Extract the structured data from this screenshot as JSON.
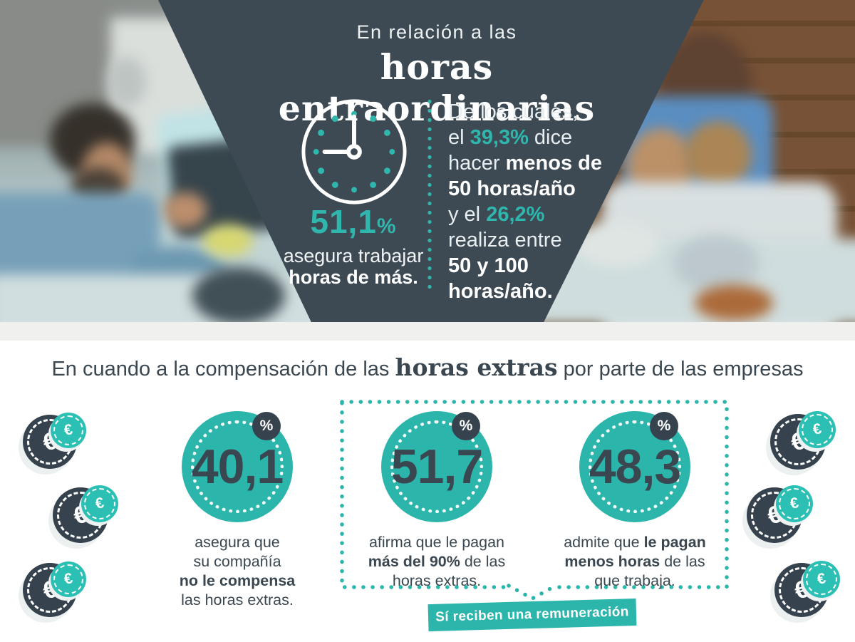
{
  "colors": {
    "teal": "#2cb5ab",
    "slate_panel": "#3d4a54",
    "text_dark": "#3a4750",
    "badge_dark": "#36434e",
    "strip": "#f0f0ee"
  },
  "icons": {
    "euro": "€",
    "clock": "clock-icon",
    "percent": "%"
  },
  "hero": {
    "title_line1": "En relación a las",
    "title_line2": "horas entraordinarias",
    "stat": {
      "value": "51,1",
      "percent_sign": "%",
      "line1": "asegura trabajar",
      "line2": "horas de más."
    },
    "detail_lines": [
      [
        {
          "t": "De los cuales,",
          "s": "r"
        }
      ],
      [
        {
          "t": "el ",
          "s": "r"
        },
        {
          "t": "39,3%",
          "s": "t"
        },
        {
          "t": " dice",
          "s": "r"
        }
      ],
      [
        {
          "t": "hacer ",
          "s": "r"
        },
        {
          "t": "menos de",
          "s": "b"
        }
      ],
      [
        {
          "t": "50 horas/año",
          "s": "b"
        }
      ],
      [
        {
          "t": "y el ",
          "s": "r"
        },
        {
          "t": "26,2%",
          "s": "t"
        }
      ],
      [
        {
          "t": "realiza entre",
          "s": "r"
        }
      ],
      [
        {
          "t": "50 y 100",
          "s": "b"
        }
      ],
      [
        {
          "t": "horas/año.",
          "s": "b"
        }
      ]
    ]
  },
  "compensation": {
    "heading_segments": [
      {
        "t": "En cuando a la compensación de las ",
        "s": "r"
      },
      {
        "t": "horas extras",
        "s": "serif"
      },
      {
        "t": " por parte de las empresas",
        "s": "r"
      }
    ],
    "stats": [
      {
        "value": "40,1",
        "badge": "%",
        "caption_lines": [
          [
            {
              "t": "asegura que",
              "s": "r"
            }
          ],
          [
            {
              "t": "su compañía",
              "s": "r"
            }
          ],
          [
            {
              "t": "no le compensa",
              "s": "b"
            }
          ],
          [
            {
              "t": "las horas extras.",
              "s": "r"
            }
          ]
        ]
      },
      {
        "value": "51,7",
        "badge": "%",
        "caption_lines": [
          [
            {
              "t": "afirma que le pagan",
              "s": "r"
            }
          ],
          [
            {
              "t": "más del 90%",
              "s": "b"
            },
            {
              "t": " de las",
              "s": "r"
            }
          ],
          [
            {
              "t": "horas extras.",
              "s": "r"
            }
          ]
        ]
      },
      {
        "value": "48,3",
        "badge": "%",
        "caption_lines": [
          [
            {
              "t": "admite que ",
              "s": "r"
            },
            {
              "t": "le pagan",
              "s": "b"
            }
          ],
          [
            {
              "t": "menos horas",
              "s": "b"
            },
            {
              "t": " de las",
              "s": "r"
            }
          ],
          [
            {
              "t": "que trabaja.",
              "s": "r"
            }
          ]
        ]
      }
    ],
    "banner_label": "Sí reciben una remuneración"
  }
}
